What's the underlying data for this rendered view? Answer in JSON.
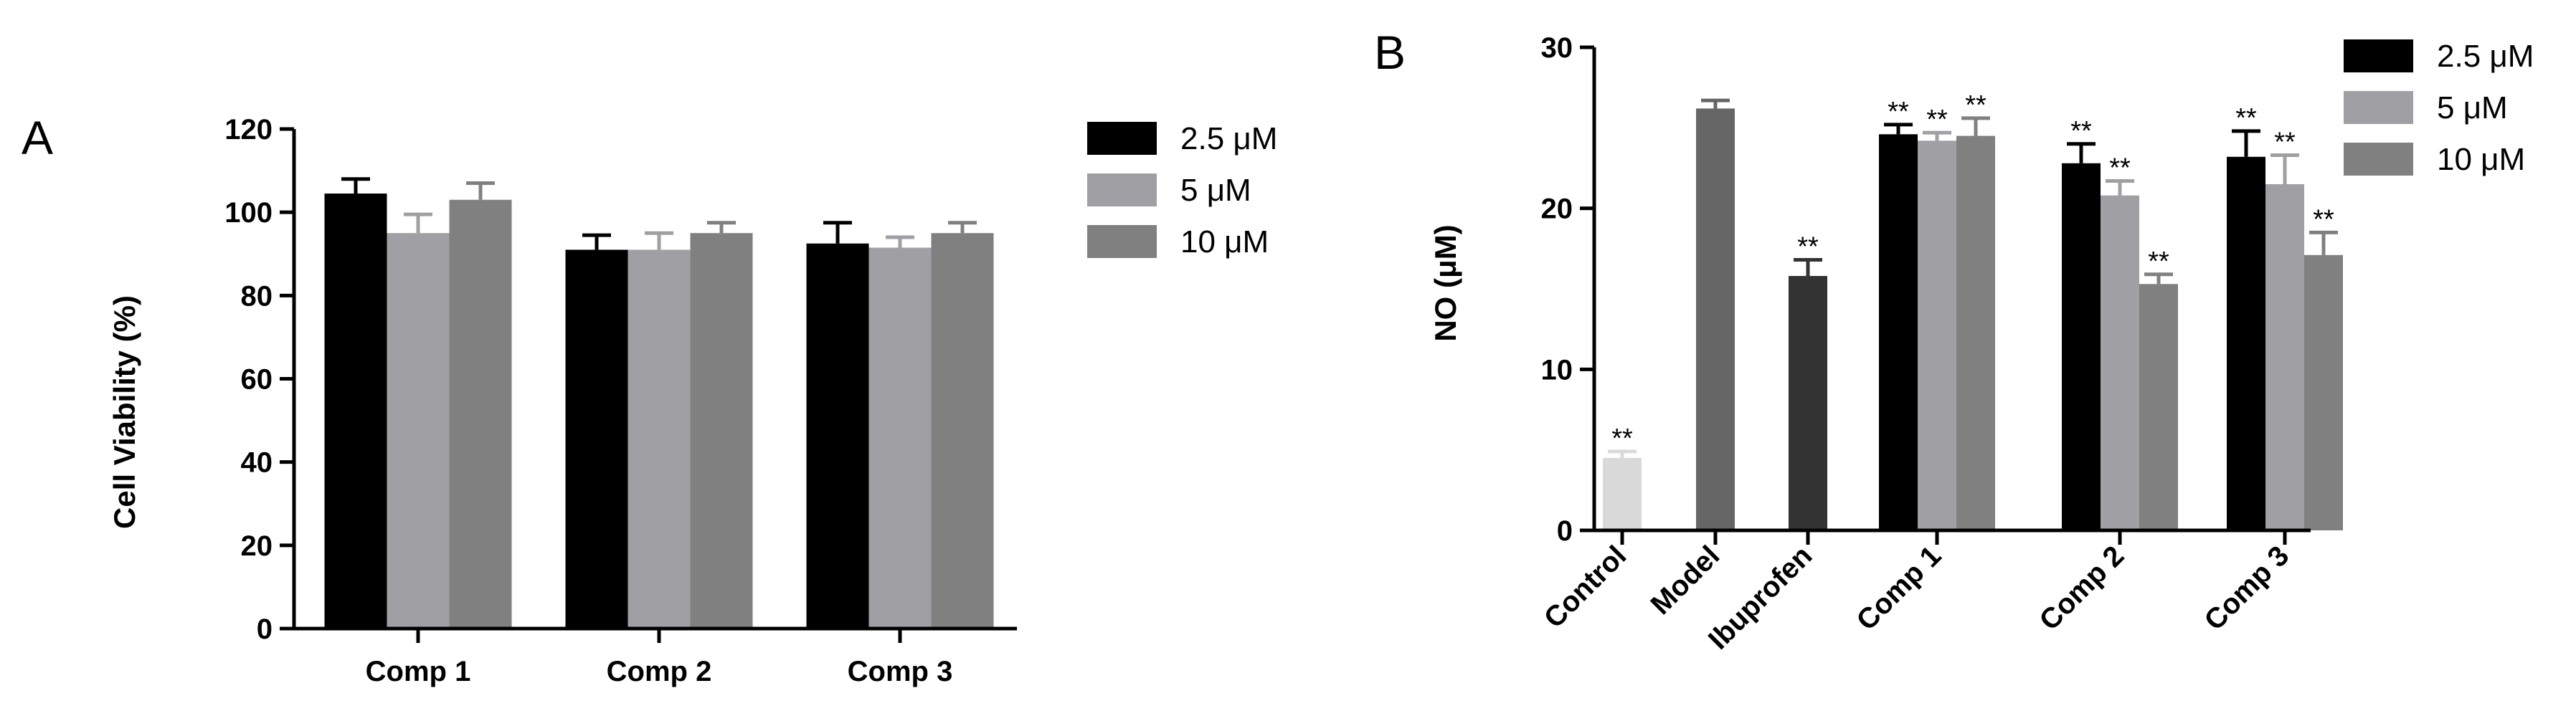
{
  "colors": {
    "s2_5": "#000000",
    "s5": "#a0a0a4",
    "s10": "#808080",
    "control": "#d9d9d9",
    "model": "#666666",
    "ibuprofen": "#333333"
  },
  "chart_data": [
    {
      "id": "A",
      "type": "bar",
      "panel_label": "A",
      "ylabel": "Cell Viability (%)",
      "xlabel": "",
      "ylim": [
        0,
        120
      ],
      "yticks": [
        0,
        20,
        40,
        60,
        80,
        100,
        120
      ],
      "categories": [
        "Comp 1",
        "Comp 2",
        "Comp 3"
      ],
      "series": [
        {
          "name": "2.5 μM",
          "color": "#000000",
          "values": [
            104.5,
            91,
            92.5
          ],
          "errors": [
            3.5,
            3.5,
            5
          ]
        },
        {
          "name": "5 μM",
          "color": "#a0a0a4",
          "values": [
            95,
            91,
            91.5
          ],
          "errors": [
            4.5,
            4,
            2.5
          ]
        },
        {
          "name": "10 μM",
          "color": "#808080",
          "values": [
            103,
            95,
            95
          ],
          "errors": [
            4,
            2.5,
            2.5
          ]
        }
      ],
      "legend_position": "top-right",
      "grid": false
    },
    {
      "id": "B",
      "type": "bar",
      "panel_label": "B",
      "ylabel": "NO (μM)",
      "xlabel": "",
      "ylim": [
        0,
        30
      ],
      "yticks": [
        0,
        10,
        20,
        30
      ],
      "singles": [
        {
          "category": "Control",
          "value": 4.5,
          "error": 0.4,
          "color": "#d9d9d9",
          "sig": "**"
        },
        {
          "category": "Model",
          "value": 26.2,
          "error": 0.5,
          "color": "#666666",
          "sig": ""
        },
        {
          "category": "Ibuprofen",
          "value": 15.8,
          "error": 1.0,
          "color": "#333333",
          "sig": "**"
        }
      ],
      "groups": [
        {
          "category": "Comp 1",
          "values": [
            24.6,
            24.2,
            24.5
          ],
          "errors": [
            0.6,
            0.5,
            1.1
          ],
          "sig": [
            "**",
            "**",
            "**"
          ]
        },
        {
          "category": "Comp 2",
          "values": [
            22.8,
            20.8,
            15.3
          ],
          "errors": [
            1.2,
            0.9,
            0.6
          ],
          "sig": [
            "**",
            "**",
            "**"
          ]
        },
        {
          "category": "Comp 3",
          "values": [
            23.2,
            21.5,
            17.1
          ],
          "errors": [
            1.6,
            1.8,
            1.4
          ],
          "sig": [
            "**",
            "**",
            "**"
          ]
        }
      ],
      "series": [
        {
          "name": "2.5 μM",
          "color": "#000000"
        },
        {
          "name": "5 μM",
          "color": "#a0a0a4"
        },
        {
          "name": "10 μM",
          "color": "#808080"
        }
      ],
      "legend_position": "top-right",
      "grid": false
    }
  ]
}
